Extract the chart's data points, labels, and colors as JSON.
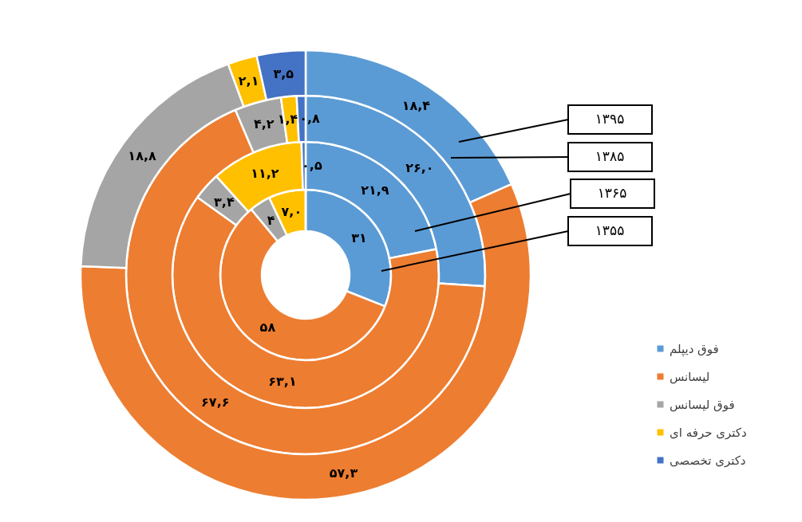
{
  "chart_data": {
    "type": "donut",
    "categories": [
      "فوق دیپلم",
      "لیسانس",
      "فوق لیسانس",
      "دکتری حرفه ای",
      "دکتری تخصصی"
    ],
    "colors": [
      "#5b9bd5",
      "#ed7d31",
      "#a5a5a5",
      "#ffc000",
      "#4472c4"
    ],
    "series": [
      {
        "name": "۱۳۵۵",
        "values": [
          31,
          58,
          4,
          7,
          0
        ],
        "value_labels": [
          "۳۱",
          "۵۸",
          "۴",
          "۷,۰",
          null
        ]
      },
      {
        "name": "۱۳۶۵",
        "values": [
          21.9,
          63.1,
          3.4,
          11.2,
          0.5
        ],
        "value_labels": [
          "۲۱,۹",
          "۶۳,۱",
          "۳,۴",
          "۱۱,۲",
          "۰,۵"
        ]
      },
      {
        "name": "۱۳۸۵",
        "values": [
          26.0,
          67.6,
          4.2,
          1.4,
          0.8
        ],
        "value_labels": [
          "۲۶,۰",
          "۶۷,۶",
          "۴,۲",
          "۱,۴",
          "۰,۸"
        ]
      },
      {
        "name": "۱۳۹۵",
        "values": [
          18.4,
          57.3,
          18.8,
          2.1,
          3.5
        ],
        "value_labels": [
          "۱۸,۴",
          "۵۷,۳",
          "۱۸,۸",
          "۲,۱",
          "۳,۵"
        ]
      }
    ],
    "legend": "bottom right"
  }
}
